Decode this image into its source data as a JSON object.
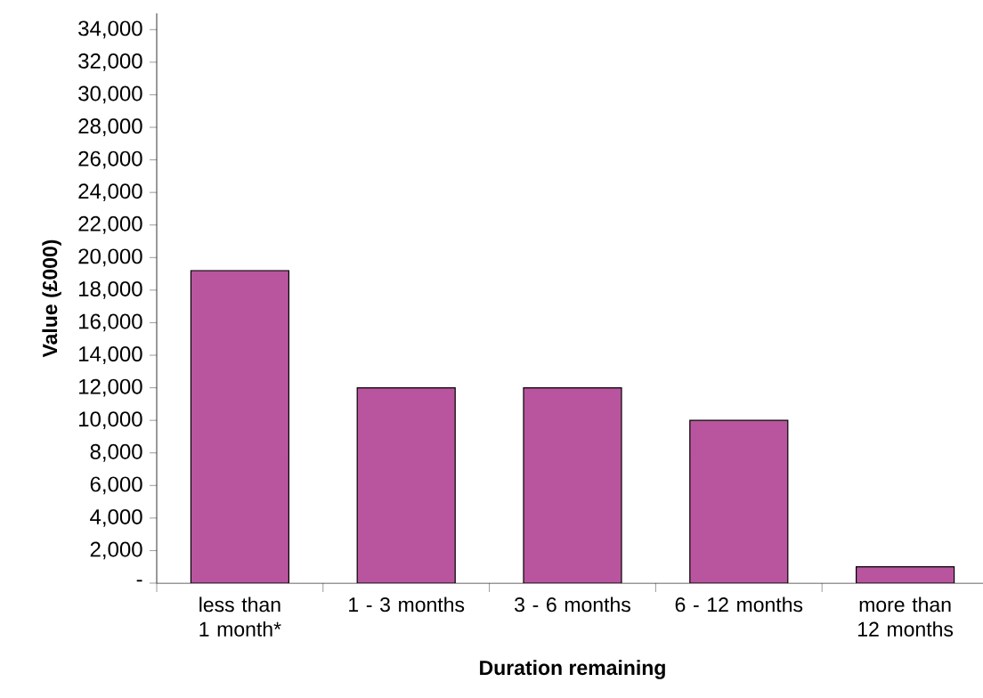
{
  "chart_data": {
    "type": "bar",
    "xlabel": "Duration remaining",
    "ylabel": "Value (£000)",
    "categories": [
      "less than 1 month*",
      "1 - 3 months",
      "3 - 6 months",
      "6 - 12 months",
      "more than 12 months"
    ],
    "values": [
      19200,
      12000,
      12000,
      10000,
      1000
    ],
    "color": "#b9559e",
    "ylim": [
      0,
      35000
    ],
    "yticks": [
      {
        "value": 0,
        "label": "-"
      },
      {
        "value": 2000,
        "label": "2,000"
      },
      {
        "value": 4000,
        "label": "4,000"
      },
      {
        "value": 6000,
        "label": "6,000"
      },
      {
        "value": 8000,
        "label": "8,000"
      },
      {
        "value": 10000,
        "label": "10,000"
      },
      {
        "value": 12000,
        "label": "12,000"
      },
      {
        "value": 14000,
        "label": "14,000"
      },
      {
        "value": 16000,
        "label": "16,000"
      },
      {
        "value": 18000,
        "label": "18,000"
      },
      {
        "value": 20000,
        "label": "20,000"
      },
      {
        "value": 22000,
        "label": "22,000"
      },
      {
        "value": 24000,
        "label": "24,000"
      },
      {
        "value": 26000,
        "label": "26,000"
      },
      {
        "value": 28000,
        "label": "28,000"
      },
      {
        "value": 30000,
        "label": "30,000"
      },
      {
        "value": 32000,
        "label": "32,000"
      },
      {
        "value": 34000,
        "label": "34,000"
      }
    ],
    "grid": false
  }
}
